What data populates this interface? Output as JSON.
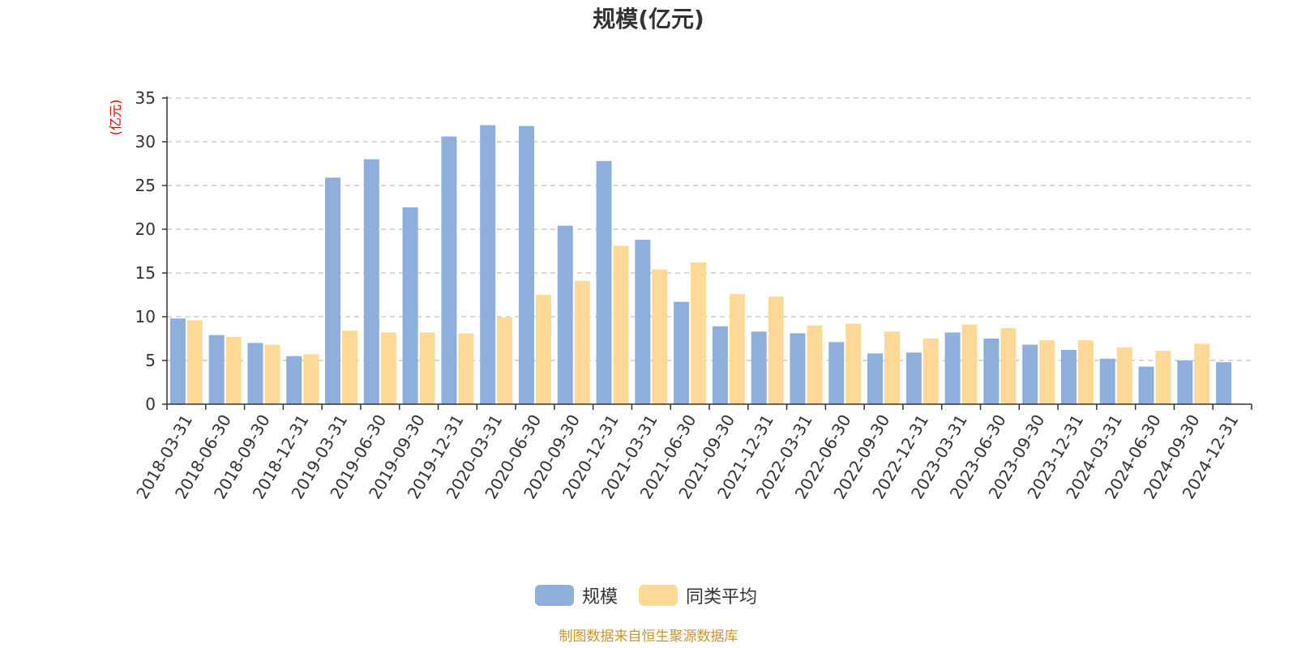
{
  "colors": {
    "series_1": "#8eaedb",
    "series_2": "#fdd896",
    "axis": "#333333",
    "grid": "#cccccc",
    "unit": "#e00000",
    "source": "#c8962a"
  },
  "source_note": "制图数据来自恒生聚源数据库",
  "chart_data": {
    "type": "bar",
    "title": "规模(亿元)",
    "ylabel": "(亿元)",
    "xlabel": "",
    "ylim": [
      0,
      35
    ],
    "yticks": [
      0,
      5,
      10,
      15,
      20,
      25,
      30,
      35
    ],
    "grid": true,
    "legend_position": "bottom-center",
    "categories": [
      "2018-03-31",
      "2018-06-30",
      "2018-09-30",
      "2018-12-31",
      "2019-03-31",
      "2019-06-30",
      "2019-09-30",
      "2019-12-31",
      "2020-03-31",
      "2020-06-30",
      "2020-09-30",
      "2020-12-31",
      "2021-03-31",
      "2021-06-30",
      "2021-09-30",
      "2021-12-31",
      "2022-03-31",
      "2022-06-30",
      "2022-09-30",
      "2022-12-31",
      "2023-03-31",
      "2023-06-30",
      "2023-09-30",
      "2023-12-31",
      "2024-03-31",
      "2024-06-30",
      "2024-09-30",
      "2024-12-31"
    ],
    "series": [
      {
        "name": "规模",
        "values": [
          9.8,
          7.9,
          7.0,
          5.5,
          25.9,
          28.0,
          22.5,
          30.6,
          31.9,
          31.8,
          20.4,
          27.8,
          18.8,
          11.7,
          8.9,
          8.3,
          8.1,
          7.1,
          5.8,
          5.9,
          8.2,
          7.5,
          6.8,
          6.2,
          5.2,
          4.3,
          5.0,
          4.8
        ]
      },
      {
        "name": "同类平均",
        "values": [
          9.6,
          7.7,
          6.8,
          5.7,
          8.4,
          8.2,
          8.2,
          8.1,
          9.9,
          12.5,
          14.1,
          18.1,
          15.4,
          16.2,
          12.6,
          12.3,
          9.0,
          9.2,
          8.3,
          7.5,
          9.1,
          8.7,
          7.3,
          7.3,
          6.5,
          6.1,
          6.9,
          null
        ]
      }
    ]
  }
}
